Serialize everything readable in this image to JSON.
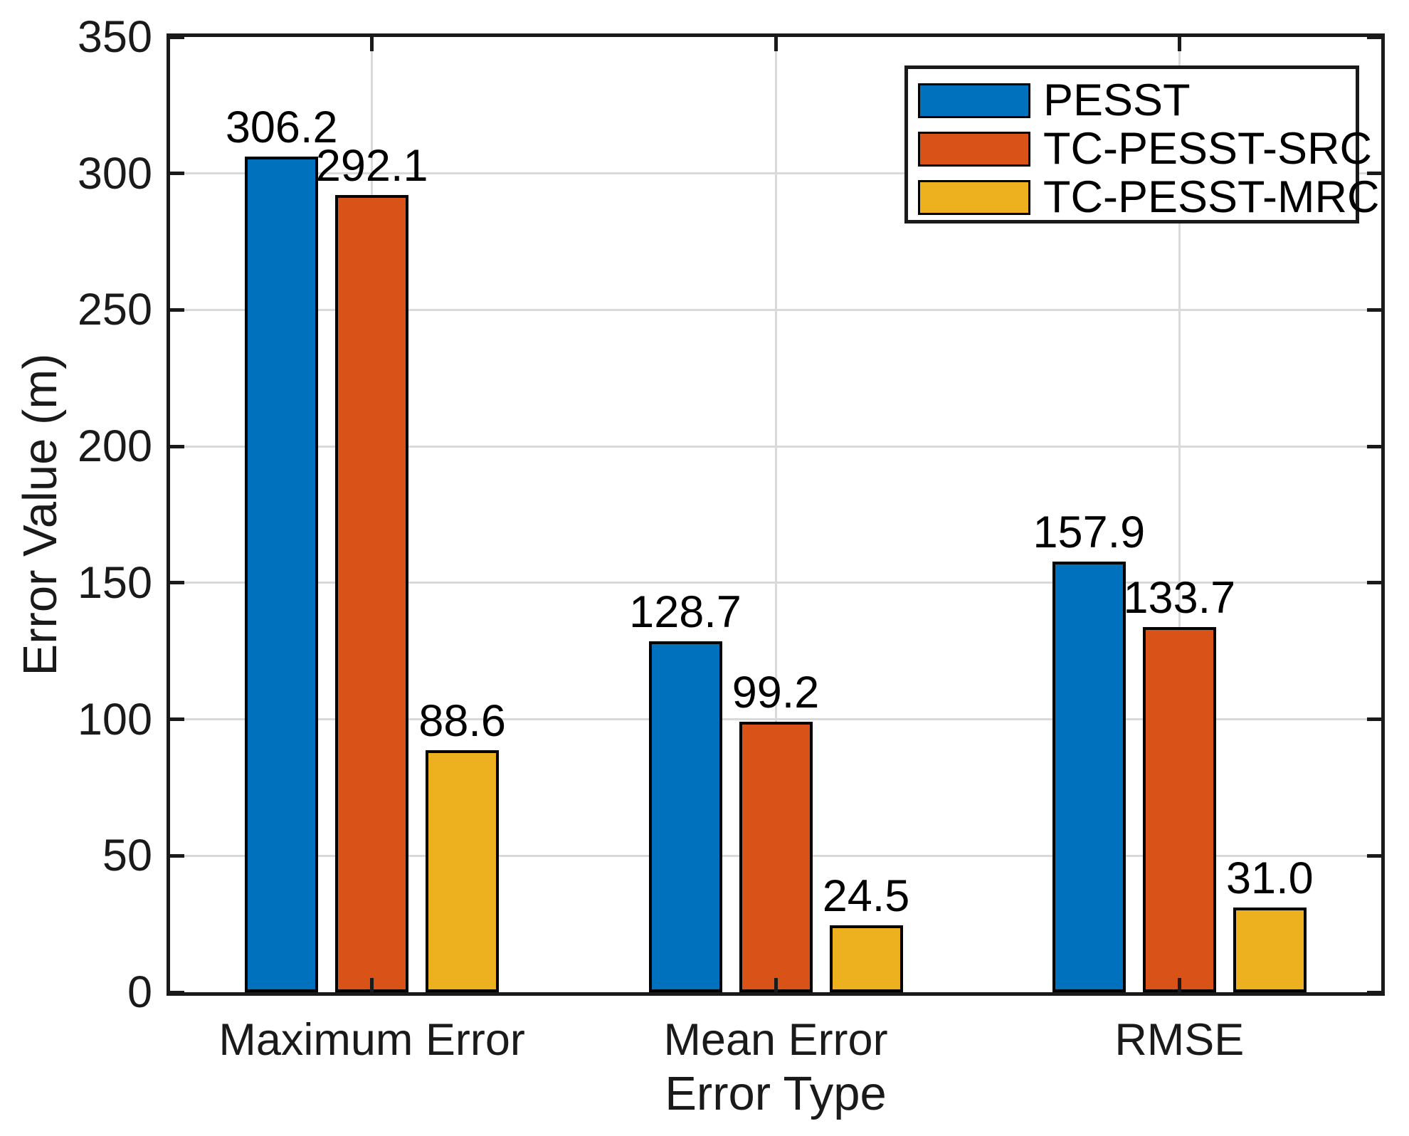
{
  "chart_data": {
    "type": "bar",
    "title": "",
    "xlabel": "Error Type",
    "ylabel": "Error Value (m)",
    "categories": [
      "Maximum Error",
      "Mean Error",
      "RMSE"
    ],
    "series": [
      {
        "name": "PESST",
        "color": "#0072BD",
        "values": [
          306.2,
          128.7,
          157.9
        ]
      },
      {
        "name": "TC-PESST-SRC",
        "color": "#D95319",
        "values": [
          292.1,
          99.2,
          133.7
        ]
      },
      {
        "name": "TC-PESST-MRC",
        "color": "#EDB120",
        "values": [
          88.6,
          24.5,
          31.0
        ]
      }
    ],
    "ylim": [
      0,
      350
    ],
    "ytick_step": 50,
    "yticks": [
      "0",
      "50",
      "100",
      "150",
      "200",
      "250",
      "300",
      "350"
    ],
    "grid": true,
    "legend_position": "northeast",
    "value_label_decimals": 1,
    "colors": {
      "axis": "#1a1a1a",
      "grid": "#d9d9d9",
      "bar_edge": "#000000",
      "text": "#000000",
      "background": "#ffffff"
    }
  }
}
